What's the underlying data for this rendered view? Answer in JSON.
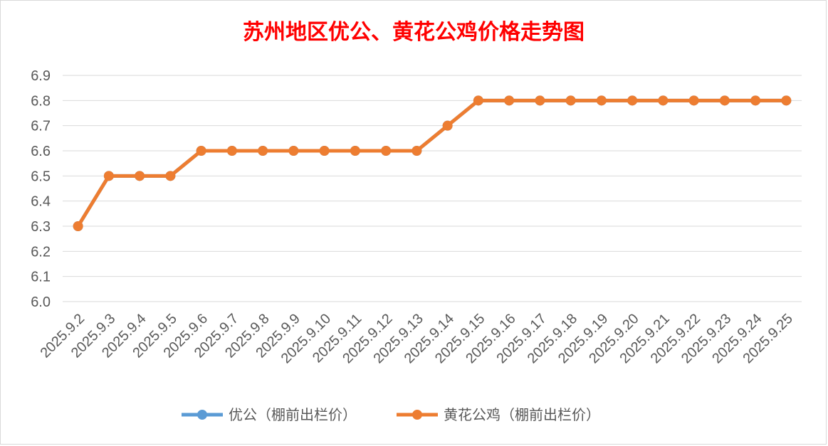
{
  "chart_data": {
    "type": "line",
    "title": "苏州地区优公、黄花公鸡价格走势图",
    "title_color": "#ff0000",
    "xlabel": "",
    "ylabel": "",
    "ylim": [
      6.0,
      6.9
    ],
    "y_ticks": [
      "6.9",
      "6.8",
      "6.7",
      "6.6",
      "6.5",
      "6.4",
      "6.3",
      "6.2",
      "6.1",
      "6.0"
    ],
    "grid": true,
    "legend_position": "bottom",
    "categories": [
      "2025.9.2",
      "2025.9.3",
      "2025.9.4",
      "2025.9.5",
      "2025.9.6",
      "2025.9.7",
      "2025.9.8",
      "2025.9.9",
      "2025.9.10",
      "2025.9.11",
      "2025.9.12",
      "2025.9.13",
      "2025.9.14",
      "2025.9.15",
      "2025.9.16",
      "2025.9.17",
      "2025.9.18",
      "2025.9.19",
      "2025.9.20",
      "2025.9.21",
      "2025.9.22",
      "2025.9.23",
      "2025.9.24",
      "2025.9.25"
    ],
    "series": [
      {
        "name": "优公（棚前出栏价）",
        "color": "#5b9bd5",
        "values": [
          6.3,
          6.5,
          6.5,
          6.5,
          6.6,
          6.6,
          6.6,
          6.6,
          6.6,
          6.6,
          6.6,
          6.6,
          6.7,
          6.8,
          6.8,
          6.8,
          6.8,
          6.8,
          6.8,
          6.8,
          6.8,
          6.8,
          6.8,
          6.8
        ]
      },
      {
        "name": "黄花公鸡（棚前出栏价）",
        "color": "#ed7d31",
        "values": [
          6.3,
          6.5,
          6.5,
          6.5,
          6.6,
          6.6,
          6.6,
          6.6,
          6.6,
          6.6,
          6.6,
          6.6,
          6.7,
          6.8,
          6.8,
          6.8,
          6.8,
          6.8,
          6.8,
          6.8,
          6.8,
          6.8,
          6.8,
          6.8
        ]
      }
    ]
  }
}
